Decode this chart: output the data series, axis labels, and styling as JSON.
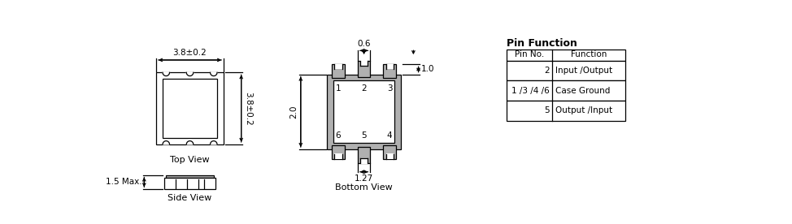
{
  "bg_color": "#ffffff",
  "line_color": "#000000",
  "gray_fill": "#b0b0b0",
  "white_fill": "#ffffff",
  "table_title": "Pin Function",
  "table_headers": [
    "Pin No.",
    "Function"
  ],
  "table_rows": [
    [
      "2",
      "Input /Output"
    ],
    [
      "1 /3 /4 /6",
      "Case Ground"
    ],
    [
      "5",
      "Output /Input"
    ]
  ],
  "top_view_label": "Top View",
  "side_view_label": "Side View",
  "bottom_view_label": "Bottom View",
  "dim_38": "3.8±0.2",
  "dim_15": "1.5 Max.",
  "dim_06": "0.6",
  "dim_10": "1.0",
  "dim_20": "2.0",
  "dim_127": "1.27"
}
